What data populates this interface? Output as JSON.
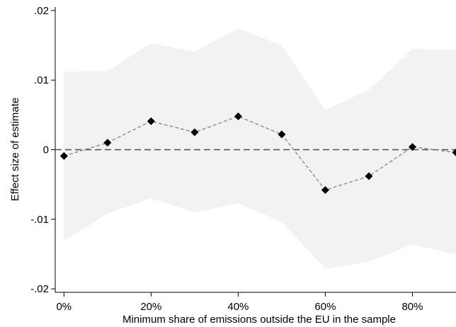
{
  "chart_data": {
    "type": "line",
    "title": "",
    "xlabel": "Minimum share of emissions outside the EU in the sample",
    "ylabel": "Effect size of estimate",
    "x": [
      0,
      10,
      20,
      30,
      40,
      50,
      60,
      70,
      80,
      90
    ],
    "x_tick_values": [
      0,
      20,
      40,
      60,
      80
    ],
    "x_tick_labels": [
      "0%",
      "20%",
      "40%",
      "60%",
      "80%"
    ],
    "xlim": [
      -2,
      90
    ],
    "y_tick_values": [
      -0.02,
      -0.01,
      0,
      0.01,
      0.02
    ],
    "y_tick_labels": [
      "-.02",
      "-.01",
      "0",
      ".01",
      ".02"
    ],
    "ylim": [
      -0.0205,
      0.0205
    ],
    "series": [
      {
        "values": [
          -0.0009,
          0.001,
          0.0041,
          0.0025,
          0.0048,
          0.0022,
          -0.0058,
          -0.0038,
          0.0004,
          -0.0004
        ],
        "ci_upper": [
          0.0112,
          0.0113,
          0.0153,
          0.0141,
          0.0174,
          0.015,
          0.0057,
          0.0086,
          0.0145,
          0.0143
        ],
        "ci_lower": [
          -0.0131,
          -0.0092,
          -0.007,
          -0.009,
          -0.0077,
          -0.0104,
          -0.0171,
          -0.0161,
          -0.0136,
          -0.0151
        ],
        "marker": "diamond",
        "line_style": "dashed",
        "color": "#000000",
        "line_color": "#8c8c8c"
      }
    ],
    "ci_color": "#f2f2f2",
    "reference_line": {
      "y": 0,
      "style": "dashed",
      "color": "#4d4d4d"
    },
    "grid": false,
    "legend": "none"
  }
}
